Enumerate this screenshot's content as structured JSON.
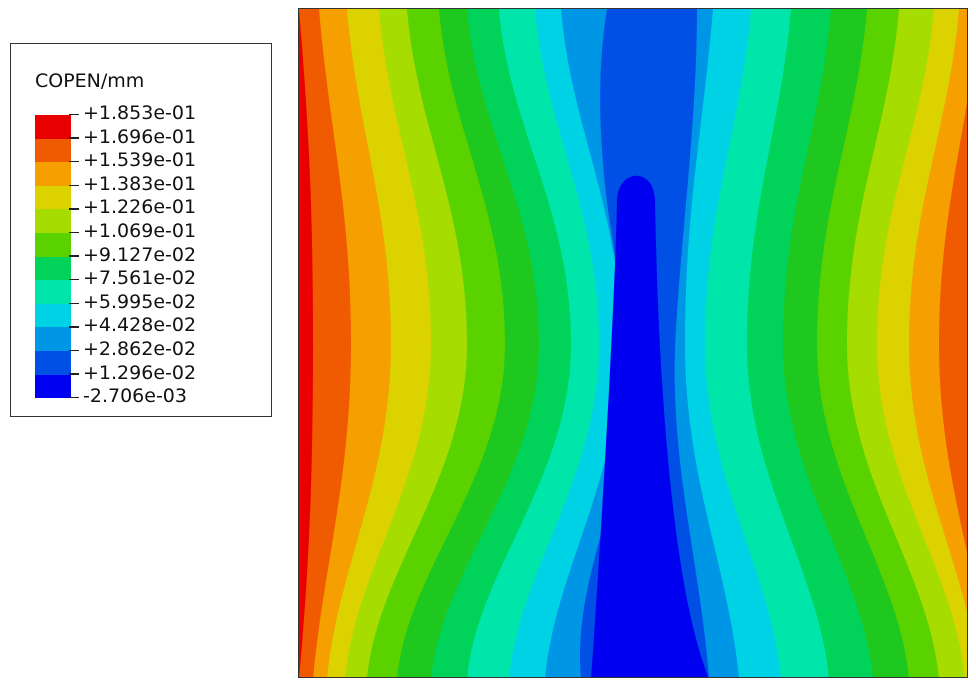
{
  "legend": {
    "title": "COPEN/mm",
    "entries": [
      {
        "label": "+1.853e-01",
        "color": "#e80000"
      },
      {
        "label": "+1.696e-01",
        "color": "#f05a00"
      },
      {
        "label": "+1.539e-01",
        "color": "#f5a000"
      },
      {
        "label": "+1.383e-01",
        "color": "#dcd200"
      },
      {
        "label": "+1.226e-01",
        "color": "#a6dc00"
      },
      {
        "label": "+1.069e-01",
        "color": "#5ad200"
      },
      {
        "label": "+9.127e-02",
        "color": "#1ec81e"
      },
      {
        "label": "+7.561e-02",
        "color": "#00d25a"
      },
      {
        "label": "+5.995e-02",
        "color": "#00e6aa"
      },
      {
        "label": "+4.428e-02",
        "color": "#00d2e6"
      },
      {
        "label": "+2.862e-02",
        "color": "#0096e6"
      },
      {
        "label": "+1.296e-02",
        "color": "#0050e6"
      },
      {
        "label": "-2.706e-03",
        "color": "#0000f0"
      }
    ]
  },
  "contour": {
    "field": "COPEN",
    "unit": "mm",
    "min": -0.002706,
    "max": 0.1853,
    "band_colors_outer_to_inner": [
      "#e80000",
      "#f05a00",
      "#f5a000",
      "#dcd200",
      "#a6dc00",
      "#5ad200",
      "#1ec81e",
      "#00d25a",
      "#00e6aa",
      "#00d2e6",
      "#0096e6",
      "#0050e6",
      "#0000f0"
    ]
  }
}
